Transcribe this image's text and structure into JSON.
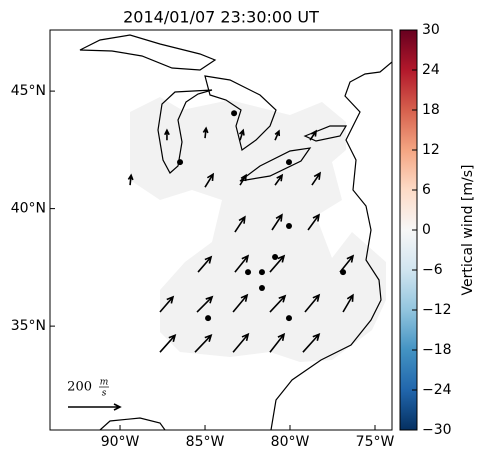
{
  "chart_data": {
    "type": "vector-map",
    "title": "2014/01/07 23:30:00 UT",
    "xlim": [
      -94.12,
      -74.0
    ],
    "ylim": [
      30.58,
      47.6
    ],
    "xticks": [
      {
        "value": -90,
        "label": "90°W"
      },
      {
        "value": -85,
        "label": "85°W"
      },
      {
        "value": -80,
        "label": "80°W"
      },
      {
        "value": -75,
        "label": "75°W"
      }
    ],
    "yticks": [
      {
        "value": 35,
        "label": "35°N"
      },
      {
        "value": 40,
        "label": "40°N"
      },
      {
        "value": 45,
        "label": "45°N"
      }
    ],
    "stations": {
      "lon": [
        -86.47,
        -83.29,
        -80.06,
        -80.06,
        -80.88,
        -82.47,
        -81.65,
        -81.65,
        -76.88,
        -84.82,
        -80.06
      ],
      "lat": [
        41.98,
        44.06,
        41.98,
        39.26,
        37.94,
        37.3,
        37.3,
        36.62,
        37.3,
        35.34,
        35.34
      ]
    },
    "vectors": {
      "lon": [
        -87.24,
        -85.0,
        -82.94,
        -80.88,
        -78.82,
        -89.41,
        -85.0,
        -82.94,
        -80.88,
        -78.71,
        -83.24,
        -81.06,
        -78.94,
        -85.41,
        -83.24,
        -81.18,
        -77.06,
        -87.65,
        -85.47,
        -83.35,
        -81.18,
        -79.12,
        -76.88,
        -87.65,
        -85.59,
        -83.35,
        -81.18,
        -79.24
      ],
      "lat": [
        42.91,
        43.0,
        42.91,
        42.91,
        42.91,
        41.0,
        40.91,
        41.0,
        41.0,
        41.0,
        39.0,
        39.09,
        39.09,
        37.3,
        37.3,
        37.3,
        37.3,
        35.6,
        35.6,
        35.6,
        35.6,
        35.6,
        35.6,
        33.89,
        33.89,
        33.89,
        33.89,
        33.89
      ],
      "u": [
        0,
        4,
        12,
        15,
        23,
        4,
        31,
        23,
        27,
        31,
        38,
        38,
        42,
        50,
        50,
        54,
        50,
        50,
        58,
        54,
        58,
        54,
        38,
        58,
        62,
        58,
        54,
        62
      ],
      "v": [
        38,
        38,
        38,
        35,
        35,
        38,
        50,
        38,
        38,
        46,
        58,
        58,
        58,
        58,
        62,
        62,
        62,
        58,
        58,
        65,
        62,
        65,
        65,
        65,
        65,
        69,
        69,
        69
      ]
    },
    "vector_scale": {
      "value": 200,
      "unit_num": "m",
      "unit_den": "s"
    },
    "colorbar": {
      "label": "Vertical wind [m/s]",
      "lim": [
        -30,
        30
      ],
      "ticks": [
        {
          "value": -30,
          "label": "−30"
        },
        {
          "value": -24,
          "label": "−24"
        },
        {
          "value": -18,
          "label": "−18"
        },
        {
          "value": -12,
          "label": "−12"
        },
        {
          "value": -6,
          "label": "−6"
        },
        0,
        6,
        12,
        18,
        24,
        30
      ]
    }
  }
}
